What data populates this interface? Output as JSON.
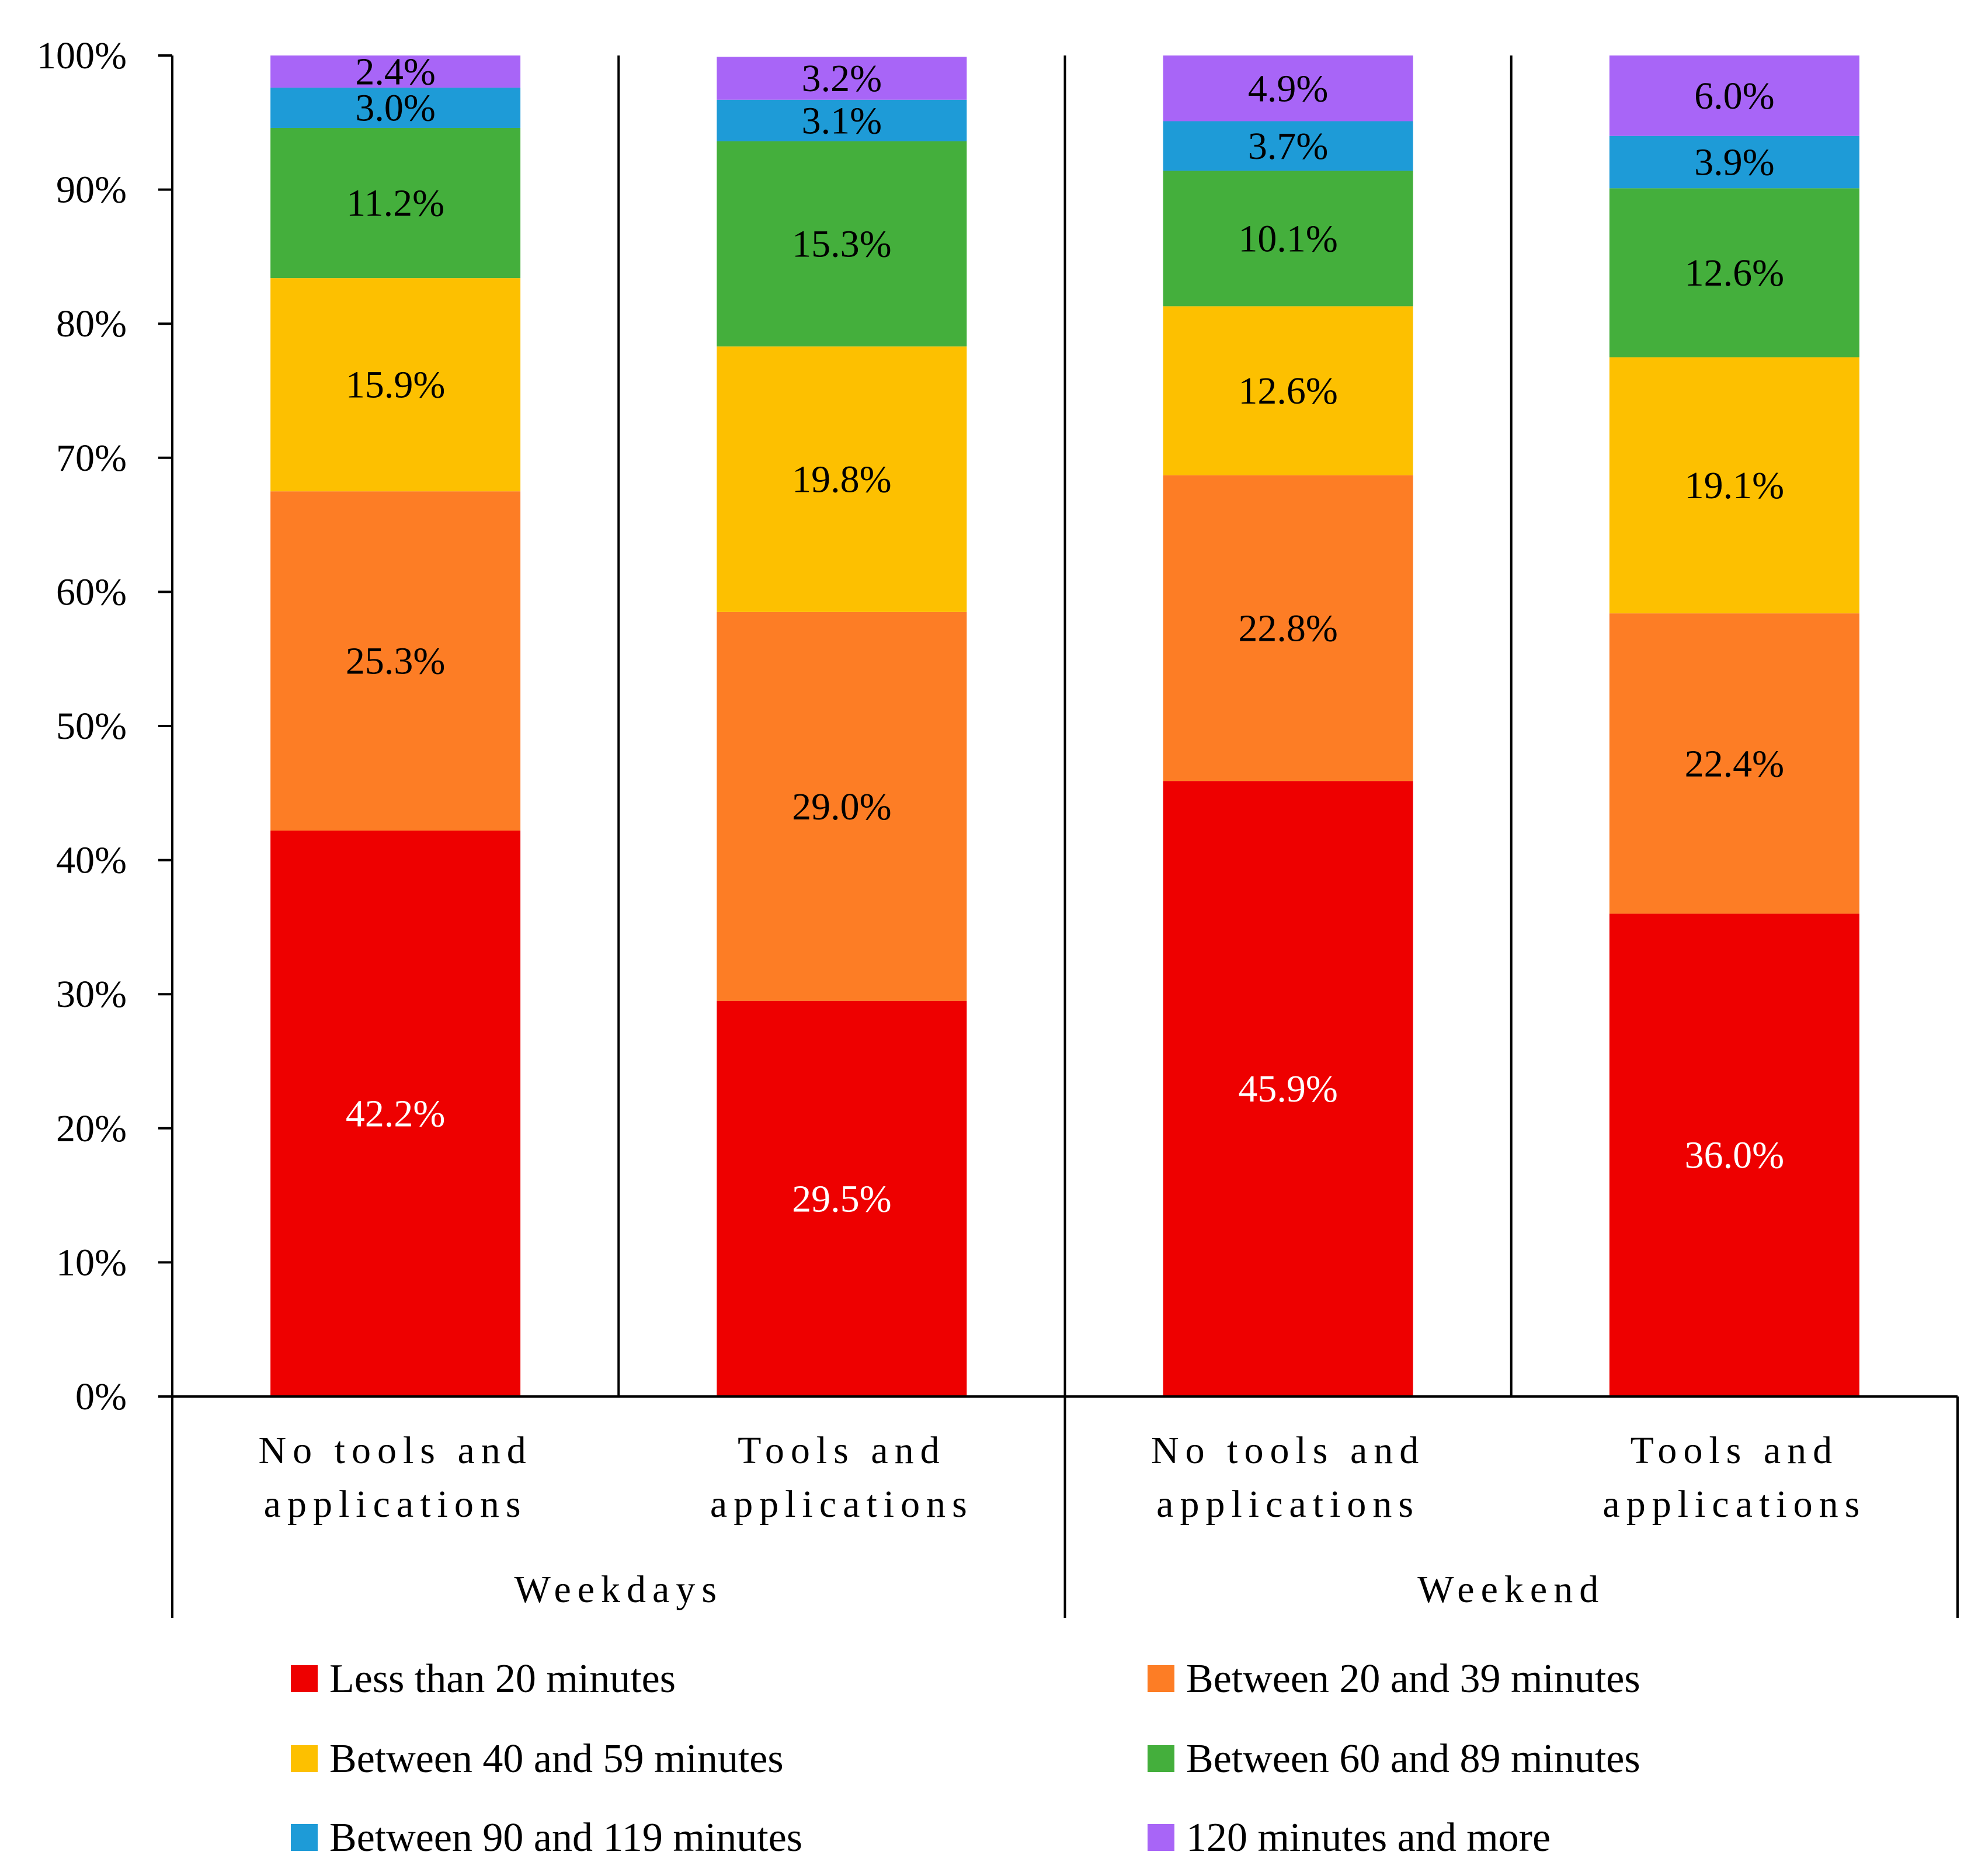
{
  "chart_data": {
    "type": "bar",
    "stacked": true,
    "title": "",
    "xlabel": "",
    "ylabel": "",
    "ylim": [
      0,
      100
    ],
    "y_ticks": [
      "0%",
      "10%",
      "20%",
      "30%",
      "40%",
      "50%",
      "60%",
      "70%",
      "80%",
      "90%",
      "100%"
    ],
    "groups": [
      {
        "label": "Weekdays",
        "categories": [
          0,
          1
        ]
      },
      {
        "label": "Weekend",
        "categories": [
          2,
          3
        ]
      }
    ],
    "categories": [
      [
        "No tools and",
        "applications"
      ],
      [
        "Tools and",
        "applications"
      ],
      [
        "No tools and",
        "applications"
      ],
      [
        "Tools and",
        "applications"
      ]
    ],
    "series": [
      {
        "name": "Less than 20 minutes",
        "color": "#ee0000",
        "label_color": "#ffffff",
        "values": [
          42.2,
          29.5,
          45.9,
          36.0
        ],
        "labels": [
          "42.2%",
          "29.5%",
          "45.9%",
          "36.0%"
        ]
      },
      {
        "name": "Between 20 and 39 minutes",
        "color": "#fd7d25",
        "label_color": "#000000",
        "values": [
          25.3,
          29.0,
          22.8,
          22.4
        ],
        "labels": [
          "25.3%",
          "29.0%",
          "22.8%",
          "22.4%"
        ]
      },
      {
        "name": "Between 40 and 59 minutes",
        "color": "#fdc000",
        "label_color": "#000000",
        "values": [
          15.9,
          19.8,
          12.6,
          19.1
        ],
        "labels": [
          "15.9%",
          "19.8%",
          "12.6%",
          "19.1%"
        ]
      },
      {
        "name": "Between 60 and 89 minutes",
        "color": "#44af3c",
        "label_color": "#000000",
        "values": [
          11.2,
          15.3,
          10.1,
          12.6
        ],
        "labels": [
          "11.2%",
          "15.3%",
          "10.1%",
          "12.6%"
        ]
      },
      {
        "name": "Between 90 and 119 minutes",
        "color": "#1e9bd7",
        "label_color": "#000000",
        "values": [
          3.0,
          3.1,
          3.7,
          3.9
        ],
        "labels": [
          "3.0%",
          "3.1%",
          "3.7%",
          "3.9%"
        ]
      },
      {
        "name": "120 minutes and more",
        "color": "#a865f7",
        "label_color": "#000000",
        "values": [
          2.4,
          3.2,
          4.9,
          6.0
        ],
        "labels": [
          "2.4%",
          "3.2%",
          "4.9%",
          "6.0%"
        ]
      }
    ],
    "legend": {
      "position": "bottom",
      "columns": 2
    }
  }
}
